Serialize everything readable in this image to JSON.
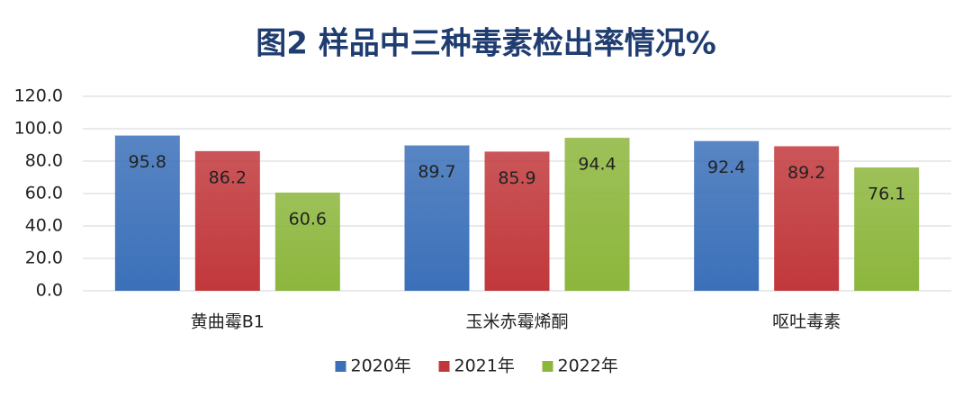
{
  "chart_data": {
    "type": "bar",
    "title": "图2  样品中三种毒素检出率情况%",
    "categories": [
      "黄曲霉B1",
      "玉米赤霉烯酮",
      "呕吐毒素"
    ],
    "series": [
      {
        "name": "2020年",
        "color": "#3b70b9",
        "values": [
          95.8,
          89.7,
          92.4
        ]
      },
      {
        "name": "2021年",
        "color": "#c1383b",
        "values": [
          86.2,
          85.9,
          89.2
        ]
      },
      {
        "name": "2022年",
        "color": "#8cb63c",
        "values": [
          60.6,
          94.4,
          76.1
        ]
      }
    ],
    "ylim": [
      0,
      120
    ],
    "yticks": [
      {
        "value": 0,
        "label": "0.0"
      },
      {
        "value": 20,
        "label": "20.0"
      },
      {
        "value": 40,
        "label": "40.0"
      },
      {
        "value": 60,
        "label": "60.0"
      },
      {
        "value": 80,
        "label": "80.0"
      },
      {
        "value": 100,
        "label": "100.0"
      },
      {
        "value": 120,
        "label": "120.0"
      }
    ],
    "grid": true,
    "legend": "bottom"
  }
}
